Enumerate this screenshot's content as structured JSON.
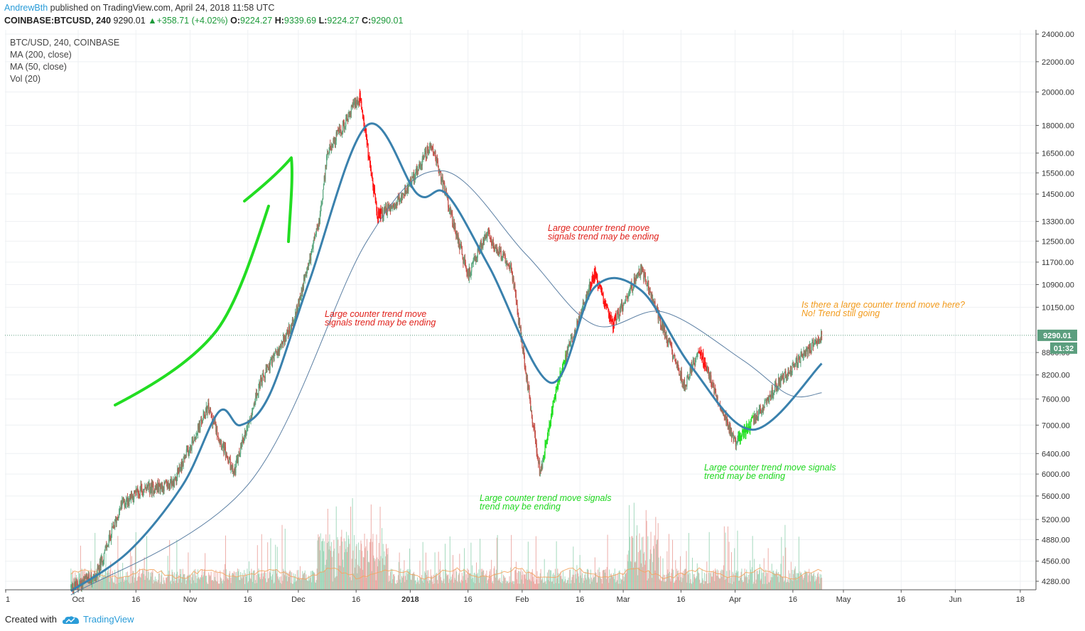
{
  "header": {
    "author": "AndrewBth",
    "published_text": "published on TradingView.com, April 24, 2018 11:58 UTC",
    "symbol": "COINBASE:BTCUSD, 240",
    "last": "9290.01",
    "change": "+358.71 (+4.02%)",
    "o_label": "O:",
    "o_value": "9224.27",
    "h_label": "H:",
    "h_value": "9339.69",
    "l_label": "L:",
    "l_value": "9224.27",
    "c_label": "C:",
    "c_value": "9290.01"
  },
  "legend": {
    "symbol_line": "BTC/USD, 240, COINBASE",
    "ma200": "MA (200, close)",
    "ma50": "MA (50, close)",
    "vol": "Vol (20)"
  },
  "annotations": {
    "a1_line1": "Large counter trend move",
    "a1_line2": "signals trend may be ending",
    "a2_line1": "Large counter trend move",
    "a2_line2": "signals trend may be ending",
    "a3_line1": "Large counter trend move signals",
    "a3_line2": "trend may be ending",
    "a4_line1": "Large counter trend move signals",
    "a4_line2": "trend may be ending",
    "a5_line1": "Is there a large counter trend move here?",
    "a5_line2": "No! Trend still going"
  },
  "price_tag": {
    "last_price": "9290.01",
    "countdown": "01:32"
  },
  "footer": {
    "created_with": "Created with",
    "brand": "TradingView"
  },
  "colors": {
    "ma50": "#3a81ad",
    "ma200": "#5b7fa3",
    "up_candle": "#5ba77f",
    "down_candle": "#c4534b",
    "counter_up": "#22e022",
    "counter_down": "#ff1010",
    "annot_red": "#e0201a",
    "annot_green": "#1ed71e",
    "annot_orange": "#f29a1a",
    "brand_blue": "#2a9cd8",
    "price_tag": "#5b9e7e"
  },
  "chart_data": {
    "type": "candlestick",
    "scale": "log",
    "timeframe": "240",
    "y_ticks": [
      4280,
      4560,
      4880,
      5200,
      5600,
      6000,
      6400,
      7000,
      7600,
      8200,
      8800,
      9290.01,
      10150,
      10900,
      11700,
      12500,
      13300,
      14500,
      15500,
      16500,
      18000,
      20000,
      22000,
      24000
    ],
    "ylim": [
      4180,
      24800
    ],
    "x_ticks": [
      "1",
      "Oct",
      "16",
      "Nov",
      "16",
      "Dec",
      "16",
      "2018",
      "16",
      "Feb",
      "16",
      "Mar",
      "16",
      "Apr",
      "16",
      "May",
      "16",
      "Jun",
      "18"
    ],
    "price_path": [
      {
        "date": "2017-09-28",
        "price": 4200
      },
      {
        "date": "2017-10-05",
        "price": 4350
      },
      {
        "date": "2017-10-12",
        "price": 5450
      },
      {
        "date": "2017-10-17",
        "price": 5700
      },
      {
        "date": "2017-10-26",
        "price": 5800
      },
      {
        "date": "2017-11-05",
        "price": 7400
      },
      {
        "date": "2017-11-12",
        "price": 6000
      },
      {
        "date": "2017-11-19",
        "price": 7900
      },
      {
        "date": "2017-11-29",
        "price": 9800
      },
      {
        "date": "2017-12-06",
        "price": 13500
      },
      {
        "date": "2017-12-08",
        "price": 16500
      },
      {
        "date": "2017-12-17",
        "price": 19700
      },
      {
        "date": "2017-12-22",
        "price": 13500
      },
      {
        "date": "2017-12-28",
        "price": 14200
      },
      {
        "date": "2018-01-06",
        "price": 17000
      },
      {
        "date": "2018-01-16",
        "price": 11200
      },
      {
        "date": "2018-01-21",
        "price": 12800
      },
      {
        "date": "2018-01-28",
        "price": 11500
      },
      {
        "date": "2018-02-05",
        "price": 6000
      },
      {
        "date": "2018-02-10",
        "price": 8100
      },
      {
        "date": "2018-02-20",
        "price": 11300
      },
      {
        "date": "2018-02-25",
        "price": 9600
      },
      {
        "date": "2018-03-05",
        "price": 11500
      },
      {
        "date": "2018-03-17",
        "price": 7900
      },
      {
        "date": "2018-03-21",
        "price": 8900
      },
      {
        "date": "2018-03-31",
        "price": 6600
      },
      {
        "date": "2018-04-05",
        "price": 7100
      },
      {
        "date": "2018-04-12",
        "price": 8000
      },
      {
        "date": "2018-04-24",
        "price": 9290
      }
    ],
    "ma50_path": [
      {
        "date": "2017-09-28",
        "price": 4150
      },
      {
        "date": "2017-10-14",
        "price": 4700
      },
      {
        "date": "2017-10-29",
        "price": 5800
      },
      {
        "date": "2017-11-08",
        "price": 7300
      },
      {
        "date": "2017-11-14",
        "price": 7000
      },
      {
        "date": "2017-11-22",
        "price": 7700
      },
      {
        "date": "2017-12-03",
        "price": 11000
      },
      {
        "date": "2017-12-19",
        "price": 18000
      },
      {
        "date": "2018-01-02",
        "price": 14500
      },
      {
        "date": "2018-01-10",
        "price": 14500
      },
      {
        "date": "2018-01-22",
        "price": 11500
      },
      {
        "date": "2018-02-08",
        "price": 8000
      },
      {
        "date": "2018-02-20",
        "price": 10800
      },
      {
        "date": "2018-03-05",
        "price": 10700
      },
      {
        "date": "2018-03-19",
        "price": 8400
      },
      {
        "date": "2018-04-05",
        "price": 6900
      },
      {
        "date": "2018-04-24",
        "price": 8500
      }
    ],
    "ma200_path": [
      {
        "date": "2017-09-28",
        "price": 4100
      },
      {
        "date": "2017-11-16",
        "price": 5800
      },
      {
        "date": "2017-12-19",
        "price": 12500
      },
      {
        "date": "2018-01-09",
        "price": 15600
      },
      {
        "date": "2018-02-01",
        "price": 12000
      },
      {
        "date": "2018-02-20",
        "price": 9600
      },
      {
        "date": "2018-03-11",
        "price": 10000
      },
      {
        "date": "2018-04-02",
        "price": 8600
      },
      {
        "date": "2018-04-15",
        "price": 7700
      },
      {
        "date": "2018-04-24",
        "price": 7750
      }
    ],
    "counter_trend_zones": [
      {
        "from": "2017-12-17",
        "to": "2017-12-23",
        "direction": "down",
        "color": "red"
      },
      {
        "from": "2018-02-06",
        "to": "2018-02-12",
        "direction": "up",
        "color": "green"
      },
      {
        "from": "2018-02-19",
        "to": "2018-02-26",
        "direction": "down",
        "color": "red"
      },
      {
        "from": "2018-03-21",
        "to": "2018-03-23",
        "direction": "down",
        "color": "red"
      },
      {
        "from": "2018-04-01",
        "to": "2018-04-05",
        "direction": "up",
        "color": "green"
      }
    ],
    "drawn_arrow": "freehand green up-arrow during the Oct–Nov rally",
    "legend": [
      "MA (200, close)",
      "MA (50, close)",
      "Vol (20)"
    ],
    "grid": true
  }
}
